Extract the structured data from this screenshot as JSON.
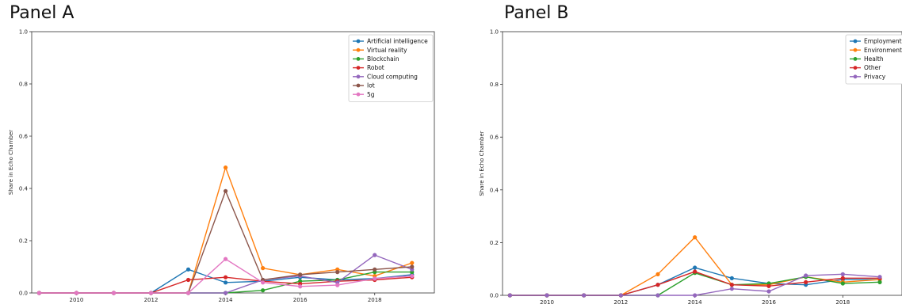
{
  "chart_data": [
    {
      "type": "line",
      "title": "Panel A",
      "ylabel": "Share in Echo Chamber",
      "xlim": [
        2008.8,
        2019.6
      ],
      "ylim": [
        0,
        1.0
      ],
      "x": [
        2009,
        2010,
        2011,
        2012,
        2013,
        2014,
        2015,
        2016,
        2017,
        2018,
        2019
      ],
      "xticks": [
        2010,
        2012,
        2014,
        2016,
        2018
      ],
      "yticks": [
        0.0,
        0.2,
        0.4,
        0.6,
        0.8,
        1.0
      ],
      "legend_position": "top-right",
      "series": [
        {
          "name": "Artificial intelligence",
          "color": "#1f77b4",
          "values": [
            0,
            0,
            0,
            0,
            0.09,
            0.04,
            0.045,
            0.06,
            0.05,
            0.055,
            0.07
          ]
        },
        {
          "name": "Virtual reality",
          "color": "#ff7f0e",
          "values": [
            0,
            0,
            0,
            0,
            0,
            0.48,
            0.095,
            0.07,
            0.09,
            0.065,
            0.115
          ]
        },
        {
          "name": "Blockchain",
          "color": "#2ca02c",
          "values": [
            0,
            0,
            0,
            0,
            0,
            0,
            0.01,
            0.045,
            0.05,
            0.08,
            0.08
          ]
        },
        {
          "name": "Robot",
          "color": "#d62728",
          "values": [
            0,
            0,
            0,
            0,
            0.05,
            0.06,
            0.045,
            0.035,
            0.045,
            0.05,
            0.06
          ]
        },
        {
          "name": "Cloud computing",
          "color": "#9467bd",
          "values": [
            0,
            0,
            0,
            0,
            0,
            0,
            0.05,
            0.065,
            0.04,
            0.145,
            0.09
          ]
        },
        {
          "name": "Iot",
          "color": "#8c564b",
          "values": [
            0,
            0,
            0,
            0,
            0,
            0.39,
            0.05,
            0.07,
            0.08,
            0.09,
            0.1
          ]
        },
        {
          "name": "5g",
          "color": "#e377c2",
          "values": [
            0,
            0,
            0,
            0,
            0,
            0.13,
            0.04,
            0.025,
            0.03,
            0.055,
            0.065
          ]
        }
      ]
    },
    {
      "type": "line",
      "title": "Panel B",
      "ylabel": "Share in Echo Chamber",
      "xlim": [
        2008.8,
        2019.6
      ],
      "ylim": [
        0,
        1.0
      ],
      "x": [
        2009,
        2010,
        2011,
        2012,
        2013,
        2014,
        2015,
        2016,
        2017,
        2018,
        2019
      ],
      "xticks": [
        2010,
        2012,
        2014,
        2016,
        2018
      ],
      "yticks": [
        0.0,
        0.2,
        0.4,
        0.6,
        0.8,
        1.0
      ],
      "legend_position": "top-right",
      "series": [
        {
          "name": "Employment",
          "color": "#1f77b4",
          "values": [
            0,
            0,
            0,
            0,
            0.04,
            0.105,
            0.065,
            0.045,
            0.04,
            0.06,
            0.06
          ]
        },
        {
          "name": "Environment",
          "color": "#ff7f0e",
          "values": [
            0,
            0,
            0,
            0,
            0.08,
            0.22,
            0.04,
            0.04,
            0.07,
            0.05,
            0.06
          ]
        },
        {
          "name": "Health",
          "color": "#2ca02c",
          "values": [
            0,
            0,
            0,
            0,
            0,
            0.085,
            0.04,
            0.045,
            0.07,
            0.045,
            0.05
          ]
        },
        {
          "name": "Other",
          "color": "#d62728",
          "values": [
            0,
            0,
            0,
            0,
            0.04,
            0.09,
            0.04,
            0.035,
            0.05,
            0.065,
            0.065
          ]
        },
        {
          "name": "Privacy",
          "color": "#9467bd",
          "values": [
            0,
            0,
            0,
            0,
            0,
            0,
            0.025,
            0.015,
            0.075,
            0.08,
            0.07
          ]
        }
      ]
    }
  ]
}
